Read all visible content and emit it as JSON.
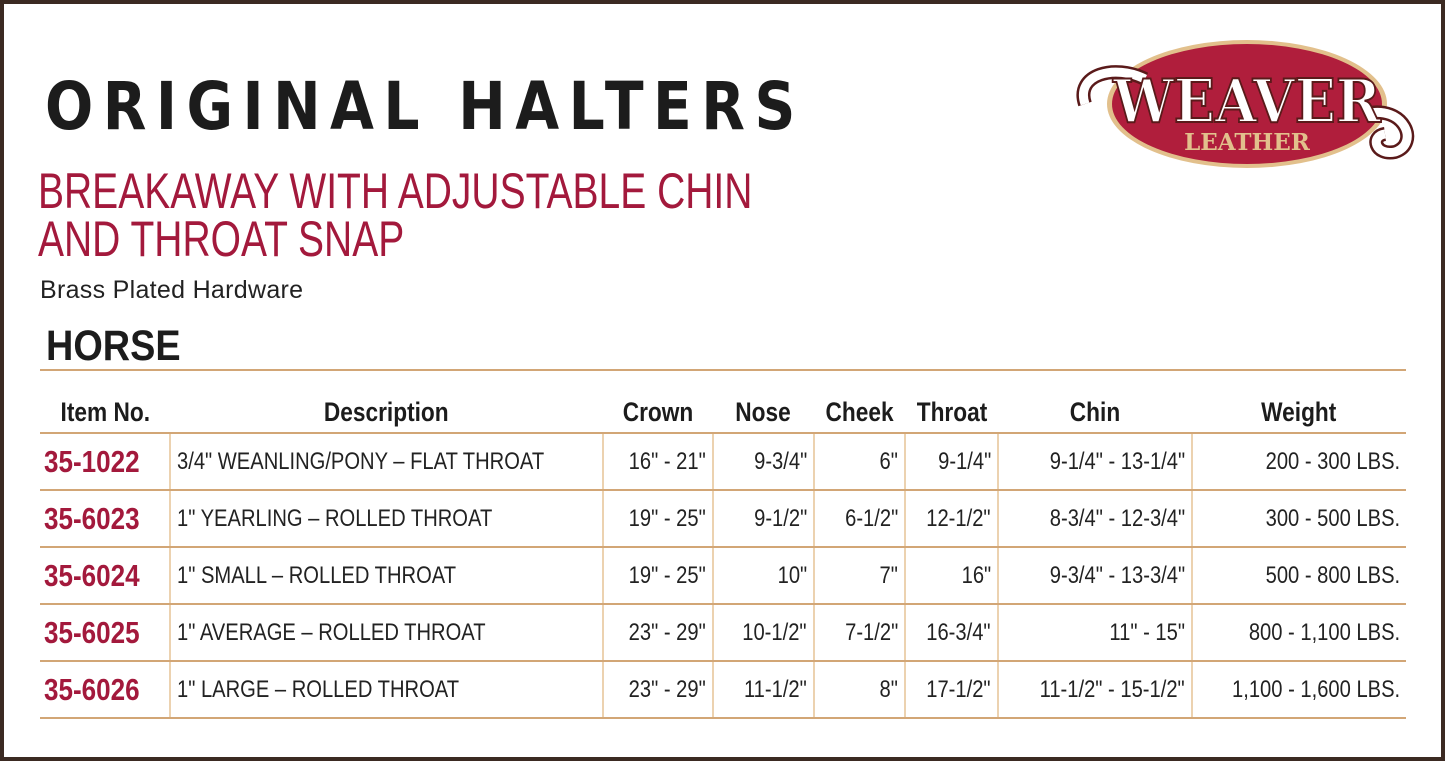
{
  "title": "ORIGINAL HALTERS",
  "subtitle_lines": [
    "BREAKAWAY WITH ADJUSTABLE CHIN",
    "AND THROAT SNAP"
  ],
  "note": "Brass Plated Hardware",
  "section": "HORSE",
  "logo": {
    "main": "WEAVER",
    "sub": "LEATHER",
    "colors": {
      "oval": "#b01e3c",
      "sub_text": "#e2c08c"
    }
  },
  "colors": {
    "accent": "#a3193c",
    "rule": "#d2a676",
    "frame": "#3b2a22"
  },
  "table": {
    "headers": [
      "Item No.",
      "Description",
      "Crown",
      "Nose",
      "Cheek",
      "Throat",
      "Chin",
      "Weight"
    ],
    "rows": [
      [
        "35-1022",
        "3/4\" WEANLING/PONY – FLAT THROAT",
        "16\" - 21\"",
        "9-3/4\"",
        "6\"",
        "9-1/4\"",
        "9-1/4\" - 13-1/4\"",
        "200 - 300 LBS."
      ],
      [
        "35-6023",
        "1\" YEARLING – ROLLED THROAT",
        "19\" - 25\"",
        "9-1/2\"",
        "6-1/2\"",
        "12-1/2\"",
        "8-3/4\" - 12-3/4\"",
        "300 - 500 LBS."
      ],
      [
        "35-6024",
        "1\" SMALL – ROLLED THROAT",
        "19\" - 25\"",
        "10\"",
        "7\"",
        "16\"",
        "9-3/4\" - 13-3/4\"",
        "500 - 800 LBS."
      ],
      [
        "35-6025",
        "1\" AVERAGE – ROLLED THROAT",
        "23\" - 29\"",
        "10-1/2\"",
        "7-1/2\"",
        "16-3/4\"",
        "11\" - 15\"",
        "800 - 1,100 LBS."
      ],
      [
        "35-6026",
        "1\" LARGE – ROLLED THROAT",
        "23\" - 29\"",
        "11-1/2\"",
        "8\"",
        "17-1/2\"",
        "11-1/2\" - 15-1/2\"",
        "1,100 - 1,600 LBS."
      ]
    ]
  }
}
